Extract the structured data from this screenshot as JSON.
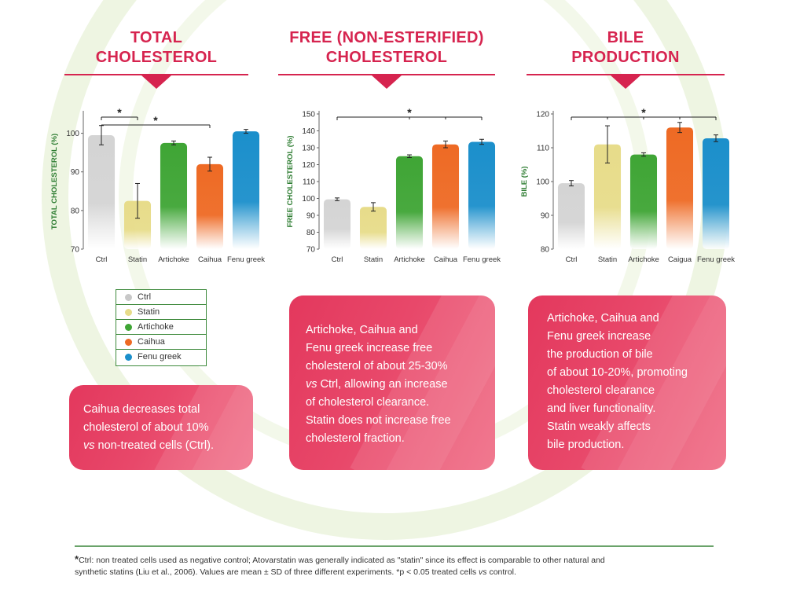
{
  "panels": [
    {
      "title_lines": [
        "TOTAL",
        "CHOLESTEROL"
      ]
    },
    {
      "title_lines": [
        "FREE (NON-ESTERIFIED)",
        "CHOLESTEROL"
      ]
    },
    {
      "title_lines": [
        "BILE",
        "PRODUCTION"
      ]
    }
  ],
  "colors": {
    "accent": "#d6244f",
    "axis_label": "#2e7d32",
    "Ctrl": "#d4d4d4",
    "Statin": "#e7dc8a",
    "Artichoke": "#3fa535",
    "Caihua": "#ee6a24",
    "Fenu greek": "#1b8fcb"
  },
  "chart_data": [
    {
      "type": "bar",
      "categories": [
        "Ctrl",
        "Statin",
        "Artichoke",
        "Caihua",
        "Fenu greek"
      ],
      "values": [
        99.5,
        82.5,
        97.5,
        92,
        100.5
      ],
      "errors": [
        2.5,
        4.5,
        0.5,
        1.8,
        0.5
      ],
      "ylabel": "TOTAL CHOLESTEROL (%)",
      "ylim": [
        70,
        105
      ],
      "yticks": [
        70,
        80,
        90,
        100
      ],
      "significance": [
        {
          "from": 0,
          "to": 1,
          "label": "*"
        },
        {
          "from": 0,
          "to": 3,
          "label": "*"
        }
      ]
    },
    {
      "type": "bar",
      "categories": [
        "Ctrl",
        "Statin",
        "Artichoke",
        "Caihua",
        "Fenu greek"
      ],
      "values": [
        99.5,
        95,
        125,
        132,
        133.5
      ],
      "errors": [
        0.8,
        2.5,
        0.8,
        2,
        1.5
      ],
      "ylabel": "FREE CHOLESTEROL (%)",
      "ylim": [
        70,
        150
      ],
      "yticks": [
        70,
        80,
        90,
        100,
        110,
        120,
        130,
        140,
        150
      ],
      "significance": [
        {
          "from": 0,
          "to": 4,
          "label": "*",
          "marks": [
            2,
            3
          ]
        }
      ]
    },
    {
      "type": "bar",
      "categories": [
        "Ctrl",
        "Statin",
        "Artichoke",
        "Caigua",
        "Fenu greek"
      ],
      "values": [
        99.5,
        111,
        108,
        116,
        112.8
      ],
      "errors": [
        0.8,
        5.5,
        0.5,
        1.5,
        1
      ],
      "ylabel": "BILE (%)",
      "ylim": [
        80,
        120
      ],
      "yticks": [
        80,
        90,
        100,
        110,
        120
      ],
      "significance": [
        {
          "from": 0,
          "to": 4,
          "label": "*",
          "marks": [
            1,
            2,
            3
          ]
        }
      ]
    }
  ],
  "legend": {
    "items": [
      {
        "label": "Ctrl",
        "color": "#c8c8c8"
      },
      {
        "label": "Statin",
        "color": "#e7dc8a"
      },
      {
        "label": "Artichoke",
        "color": "#3fa535"
      },
      {
        "label": "Caihua",
        "color": "#ee6a24"
      },
      {
        "label": "Fenu greek",
        "color": "#1b8fcb"
      }
    ]
  },
  "boxes": [
    {
      "lines": [
        [
          {
            "t": "Caihua decreases total"
          }
        ],
        [
          {
            "t": "cholesterol of about 10%"
          }
        ],
        [
          {
            "t": "vs",
            "i": true
          },
          {
            "t": " non-treated cells (Ctrl)."
          }
        ]
      ]
    },
    {
      "lines": [
        [
          {
            "t": "Artichoke, Caihua and"
          }
        ],
        [
          {
            "t": "Fenu greek increase free"
          }
        ],
        [
          {
            "t": "cholesterol of about 25-30%"
          }
        ],
        [
          {
            "t": "vs",
            "i": true
          },
          {
            "t": " Ctrl, allowing an increase"
          }
        ],
        [
          {
            "t": "of cholesterol clearance."
          }
        ],
        [
          {
            "t": "Statin does not increase free"
          }
        ],
        [
          {
            "t": "cholesterol fraction."
          }
        ]
      ]
    },
    {
      "lines": [
        [
          {
            "t": "Artichoke, Caihua and"
          }
        ],
        [
          {
            "t": "Fenu greek increase"
          }
        ],
        [
          {
            "t": "the production of bile"
          }
        ],
        [
          {
            "t": "of about 10-20%, promoting"
          }
        ],
        [
          {
            "t": "cholesterol clearance"
          }
        ],
        [
          {
            "t": "and liver functionality."
          }
        ],
        [
          {
            "t": "Statin weakly affects"
          }
        ],
        [
          {
            "t": "bile production."
          }
        ]
      ]
    }
  ],
  "footnote": {
    "lines": [
      [
        {
          "t": "*",
          "b": true
        },
        {
          "t": "Ctrl: non treated cells used as negative control; Atovarstatin was generally indicated as \"statin\" since its effect is comparable to other natural and"
        }
      ],
      [
        {
          "t": "synthetic statins (Liu et al., 2006). Values are mean ± SD of three different experiments. *p < 0.05 treated cells "
        },
        {
          "t": "vs",
          "i": true
        },
        {
          "t": " control."
        }
      ]
    ]
  }
}
